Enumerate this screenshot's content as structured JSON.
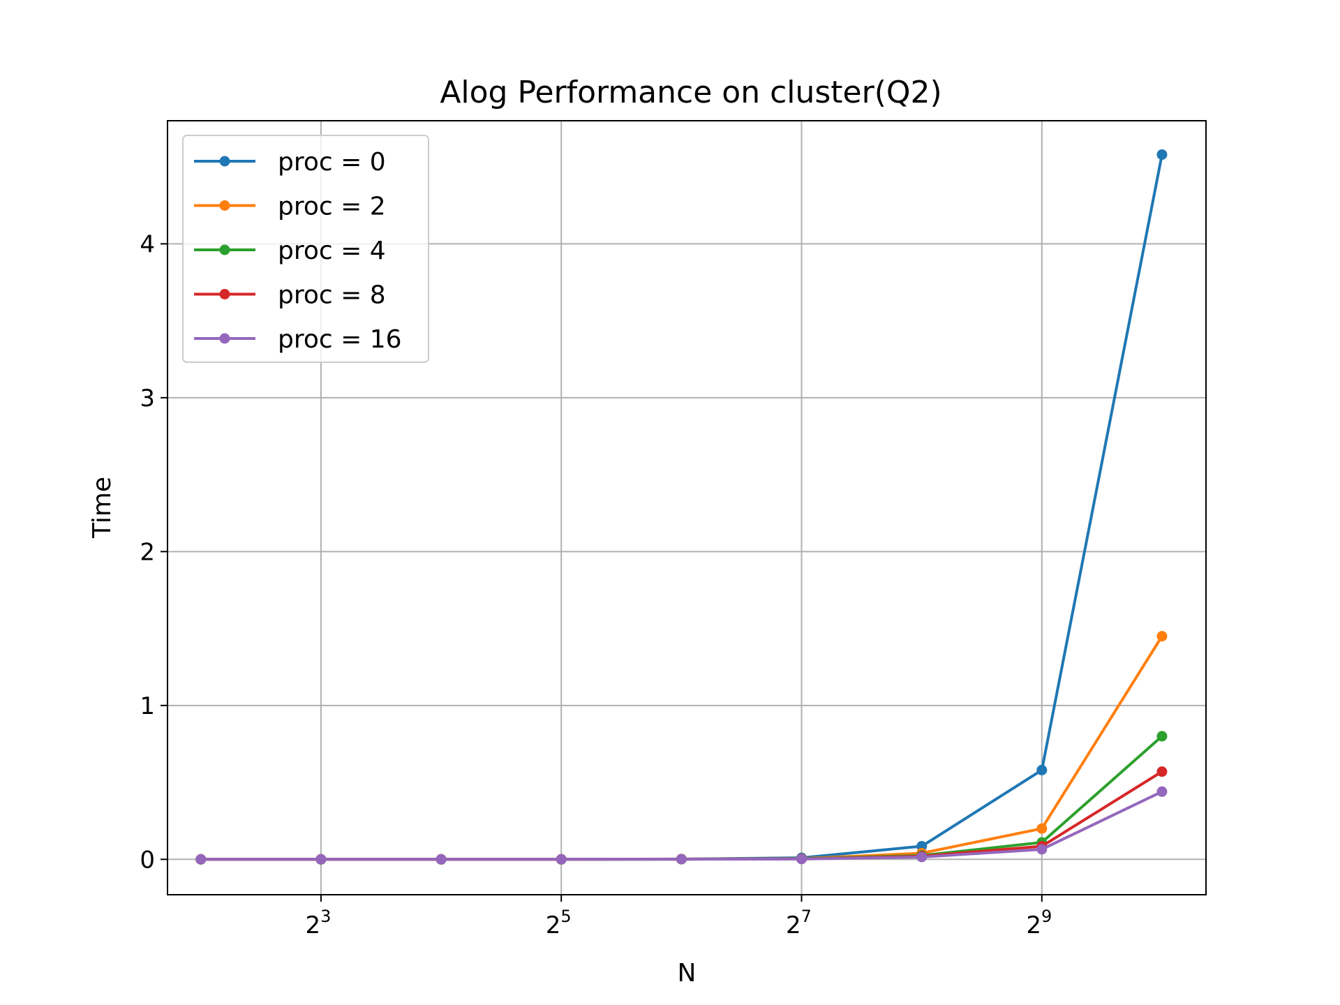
{
  "chart_data": {
    "type": "line",
    "title": "Alog Performance on cluster(Q2)",
    "xlabel": "N",
    "ylabel": "Time",
    "x_scale": "log2",
    "x": [
      4,
      8,
      16,
      32,
      64,
      128,
      256,
      512,
      1024
    ],
    "xlim": [
      3.3,
      1320
    ],
    "ylim": [
      -0.23,
      4.8
    ],
    "x_ticks": [
      {
        "value": 8,
        "base": "2",
        "exp": "3"
      },
      {
        "value": 32,
        "base": "2",
        "exp": "5"
      },
      {
        "value": 128,
        "base": "2",
        "exp": "7"
      },
      {
        "value": 512,
        "base": "2",
        "exp": "9"
      }
    ],
    "y_ticks": [
      0,
      1,
      2,
      3,
      4
    ],
    "grid": true,
    "legend_position": "upper-left",
    "series": [
      {
        "name": "proc = 0",
        "color": "#1f77b4",
        "values": [
          0.0,
          0.0,
          0.0,
          0.0,
          0.002,
          0.01,
          0.085,
          0.58,
          4.58
        ]
      },
      {
        "name": "proc = 2",
        "color": "#ff7f0e",
        "values": [
          0.0,
          0.0,
          0.0,
          0.0,
          0.002,
          0.005,
          0.04,
          0.2,
          1.45
        ]
      },
      {
        "name": "proc = 4",
        "color": "#2ca02c",
        "values": [
          0.0,
          0.0,
          0.0,
          0.0,
          0.001,
          0.004,
          0.025,
          0.11,
          0.8
        ]
      },
      {
        "name": "proc = 8",
        "color": "#d62728",
        "values": [
          0.0,
          0.0,
          0.0,
          0.0,
          0.001,
          0.003,
          0.02,
          0.085,
          0.57
        ]
      },
      {
        "name": "proc = 16",
        "color": "#9467bd",
        "values": [
          0.0,
          0.0,
          0.0,
          0.0,
          0.001,
          0.002,
          0.015,
          0.065,
          0.44
        ]
      }
    ]
  }
}
